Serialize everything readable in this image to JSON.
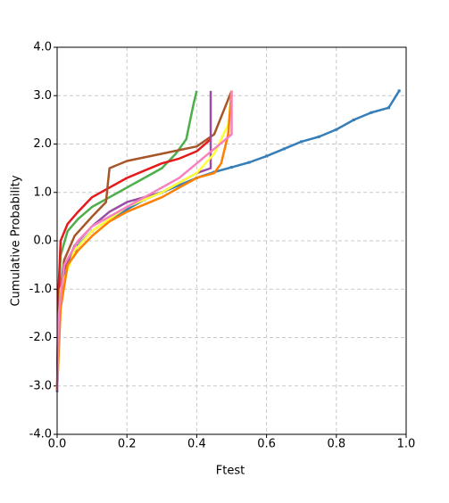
{
  "chart_data": {
    "type": "line",
    "xlabel": "Ftest",
    "ylabel": "Cumulative Probability",
    "xlim": [
      0,
      1
    ],
    "ylim": [
      -4,
      4
    ],
    "xticks": [
      {
        "value": 0,
        "label": "0.0"
      },
      {
        "value": 0.2,
        "label": "0.2"
      },
      {
        "value": 0.4,
        "label": "0.4"
      },
      {
        "value": 0.6,
        "label": "0.6"
      },
      {
        "value": 0.8,
        "label": "0.8"
      },
      {
        "value": 1,
        "label": "1.0"
      }
    ],
    "yticks": [
      {
        "value": -4,
        "label": "-4.0"
      },
      {
        "value": -3,
        "label": "-3.0"
      },
      {
        "value": -2,
        "label": "-2.0"
      },
      {
        "value": -1,
        "label": "-1.0"
      },
      {
        "value": 0,
        "label": "0.0"
      },
      {
        "value": 1,
        "label": "1.0"
      },
      {
        "value": 2,
        "label": "2.0"
      },
      {
        "value": 3,
        "label": "3.0"
      },
      {
        "value": 4,
        "label": "4.0"
      }
    ],
    "grid": true,
    "series": [
      {
        "color": "#377eb8",
        "markers": true,
        "x": [
          0,
          0.005,
          0.01,
          0.03,
          0.06,
          0.1,
          0.15,
          0.2,
          0.25,
          0.3,
          0.35,
          0.4,
          0.45,
          0.5,
          0.55,
          0.6,
          0.65,
          0.7,
          0.75,
          0.8,
          0.85,
          0.9,
          0.95,
          0.98
        ],
        "values": [
          -3.1,
          -2.0,
          -1.2,
          -0.5,
          -0.1,
          0.2,
          0.45,
          0.65,
          0.85,
          1.0,
          1.15,
          1.3,
          1.42,
          1.52,
          1.62,
          1.75,
          1.9,
          2.05,
          2.15,
          2.3,
          2.5,
          2.65,
          2.75,
          3.1
        ]
      },
      {
        "color": "#4daf4a",
        "x": [
          0,
          0.003,
          0.01,
          0.03,
          0.06,
          0.1,
          0.15,
          0.2,
          0.25,
          0.3,
          0.34,
          0.37,
          0.39,
          0.4
        ],
        "values": [
          -3.1,
          -1.5,
          -0.3,
          0.2,
          0.45,
          0.7,
          0.9,
          1.1,
          1.3,
          1.5,
          1.8,
          2.1,
          2.8,
          3.1
        ]
      },
      {
        "color": "#e41a1c",
        "x": [
          0,
          0.003,
          0.01,
          0.03,
          0.06,
          0.1,
          0.15,
          0.2,
          0.25,
          0.3,
          0.35,
          0.4,
          0.44
        ],
        "values": [
          -3.1,
          -1.2,
          0,
          0.35,
          0.6,
          0.9,
          1.1,
          1.3,
          1.45,
          1.6,
          1.7,
          1.85,
          2.1
        ]
      },
      {
        "color": "#a65628",
        "x": [
          0,
          0.005,
          0.02,
          0.05,
          0.1,
          0.14,
          0.15,
          0.2,
          0.3,
          0.4,
          0.45,
          0.5
        ],
        "values": [
          -3.1,
          -1.3,
          -0.4,
          0.1,
          0.5,
          0.8,
          1.5,
          1.65,
          1.8,
          1.95,
          2.2,
          3.1
        ]
      },
      {
        "color": "#984ea3",
        "x": [
          0,
          0.005,
          0.02,
          0.05,
          0.1,
          0.15,
          0.2,
          0.3,
          0.35,
          0.4,
          0.44,
          0.44
        ],
        "values": [
          -3.1,
          -1.5,
          -0.6,
          -0.1,
          0.3,
          0.6,
          0.8,
          1.0,
          1.2,
          1.4,
          1.5,
          3.1
        ]
      },
      {
        "color": "#ffff33",
        "x": [
          0,
          0.01,
          0.05,
          0.1,
          0.2,
          0.3,
          0.4,
          0.45,
          0.49,
          0.5
        ],
        "values": [
          -3.1,
          -1.0,
          -0.2,
          0.2,
          0.7,
          1.0,
          1.4,
          1.8,
          2.4,
          3.1
        ]
      },
      {
        "color": "#ff7f00",
        "x": [
          0,
          0.01,
          0.03,
          0.06,
          0.1,
          0.15,
          0.2,
          0.3,
          0.35,
          0.4,
          0.45,
          0.47,
          0.49,
          0.5
        ],
        "values": [
          -3.1,
          -1.4,
          -0.5,
          -0.2,
          0.1,
          0.4,
          0.6,
          0.9,
          1.1,
          1.3,
          1.4,
          1.6,
          2.2,
          3.1
        ]
      },
      {
        "color": "#f781bf",
        "x": [
          0,
          0.005,
          0.02,
          0.06,
          0.1,
          0.15,
          0.2,
          0.25,
          0.3,
          0.35,
          0.4,
          0.45,
          0.5,
          0.5
        ],
        "values": [
          -3.1,
          -1.5,
          -0.5,
          0.0,
          0.3,
          0.5,
          0.7,
          0.9,
          1.1,
          1.3,
          1.6,
          1.9,
          2.2,
          3.1
        ]
      }
    ]
  }
}
